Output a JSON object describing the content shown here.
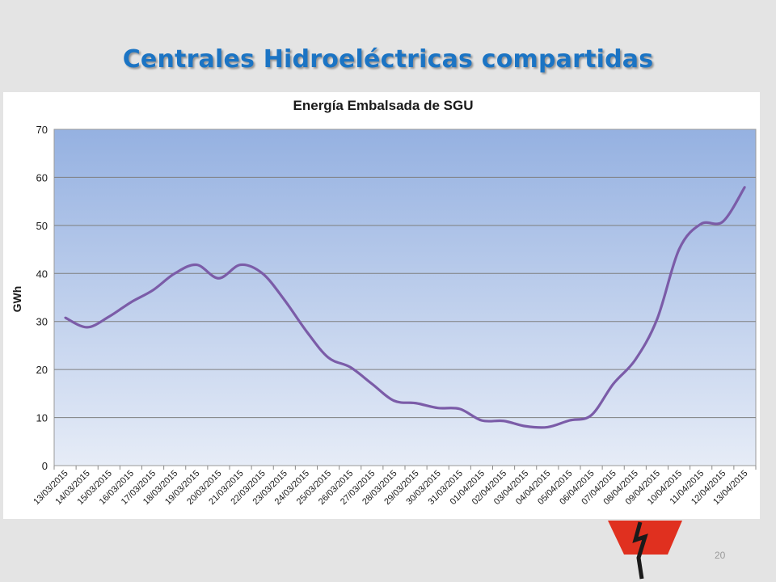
{
  "slide": {
    "title": "Centrales Hidroeléctricas compartidas",
    "page_number": "20"
  },
  "colors": {
    "title": "#1b74c4",
    "series_line": "#7b5ca8",
    "plot_top": "#95b1e1",
    "plot_bottom": "#e6ecf7",
    "logo_red": "#e0301f"
  },
  "logo": {
    "icon": "lightning-bolt-logo-icon"
  },
  "chart_data": {
    "type": "line",
    "title": "Energía Embalsada de SGU",
    "xlabel": "",
    "ylabel": "GWh",
    "ylim": [
      0,
      70
    ],
    "yticks": [
      "0",
      "10",
      "20",
      "30",
      "40",
      "50",
      "60",
      "70"
    ],
    "grid": true,
    "legend": "none",
    "categories": [
      "13/03/2015",
      "14/03/2015",
      "15/03/2015",
      "16/03/2015",
      "17/03/2015",
      "18/03/2015",
      "19/03/2015",
      "20/03/2015",
      "21/03/2015",
      "22/03/2015",
      "23/03/2015",
      "24/03/2015",
      "25/03/2015",
      "26/03/2015",
      "27/03/2015",
      "28/03/2015",
      "29/03/2015",
      "30/03/2015",
      "31/03/2015",
      "01/04/2015",
      "02/04/2015",
      "03/04/2015",
      "04/04/2015",
      "05/04/2015",
      "06/04/2015",
      "07/04/2015",
      "08/04/2015",
      "09/04/2015",
      "10/04/2015",
      "11/04/2015",
      "12/04/2015",
      "13/04/2015"
    ],
    "series": [
      {
        "values": [
          30.8,
          28.8,
          31.0,
          34.0,
          36.5,
          40.0,
          41.8,
          39.0,
          41.8,
          40.0,
          34.5,
          28.0,
          22.5,
          20.5,
          17.0,
          13.5,
          13.0,
          12.0,
          11.8,
          9.4,
          9.3,
          8.2,
          8.0,
          9.4,
          10.5,
          17.0,
          22.0,
          30.5,
          45.0,
          50.3,
          50.8,
          58.0
        ]
      }
    ]
  }
}
